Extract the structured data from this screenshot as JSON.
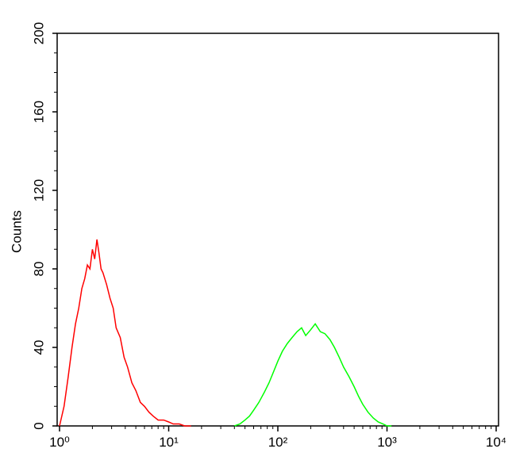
{
  "chart_data": {
    "type": "line",
    "ylabel": "Counts",
    "xscale": "log",
    "xlim": [
      1,
      10000
    ],
    "ylim": [
      0,
      200
    ],
    "xticks": [
      {
        "value": 1,
        "label": "10⁰"
      },
      {
        "value": 10,
        "label": "10¹"
      },
      {
        "value": 100,
        "label": "10²"
      },
      {
        "value": 1000,
        "label": "10³"
      },
      {
        "value": 10000,
        "label": "10⁴"
      }
    ],
    "yticks": [
      0,
      40,
      80,
      120,
      160,
      200
    ],
    "series": [
      {
        "color": "#ff0000",
        "x": [
          1.0,
          1.1,
          1.2,
          1.3,
          1.4,
          1.5,
          1.6,
          1.7,
          1.8,
          1.9,
          2.0,
          2.1,
          2.2,
          2.3,
          2.4,
          2.5,
          2.7,
          2.9,
          3.1,
          3.3,
          3.6,
          3.9,
          4.2,
          4.6,
          5.0,
          5.5,
          6.0,
          6.6,
          7.2,
          8.0,
          9.0,
          10,
          11,
          12.5,
          14,
          16
        ],
        "values": [
          0,
          10,
          25,
          40,
          52,
          60,
          70,
          75,
          82,
          80,
          90,
          85,
          95,
          88,
          80,
          78,
          72,
          65,
          60,
          50,
          45,
          35,
          30,
          22,
          18,
          12,
          10,
          7,
          5,
          3,
          3,
          2,
          1,
          1,
          0,
          0
        ]
      },
      {
        "color": "#00ff00",
        "x": [
          40,
          45,
          50,
          55,
          60,
          67,
          75,
          83,
          92,
          100,
          110,
          122,
          135,
          150,
          165,
          180,
          200,
          220,
          245,
          270,
          300,
          330,
          365,
          400,
          450,
          500,
          550,
          600,
          670,
          750,
          830,
          920,
          1000,
          1100
        ],
        "values": [
          0,
          1,
          3,
          5,
          8,
          12,
          17,
          22,
          28,
          33,
          38,
          42,
          45,
          48,
          50,
          46,
          49,
          52,
          48,
          47,
          44,
          40,
          35,
          30,
          25,
          20,
          15,
          11,
          7,
          4,
          2,
          1,
          0,
          0
        ]
      }
    ]
  }
}
